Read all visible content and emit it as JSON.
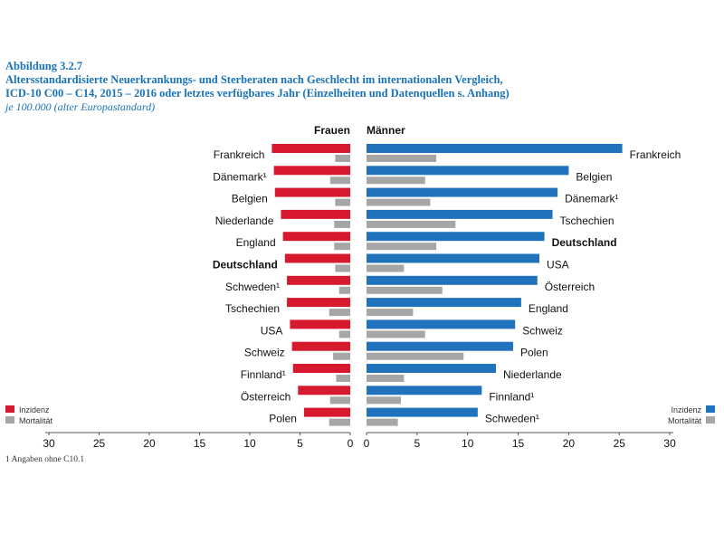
{
  "header": {
    "label": "Abbildung 3.2.7",
    "title_line1": "Altersstandardisierte Neuerkrankungs- und Sterberaten nach Geschlecht im internationalen Vergleich,",
    "title_line2": "ICD-10 C00 – C14, 2015 – 2016 oder letztes verfügbares Jahr (Einzelheiten und Datenquellen s. Anhang)",
    "unit": "je 100.000 (alter Europastandard)"
  },
  "footnote": "1  Angaben ohne C10.1",
  "colors": {
    "incidence_f": "#d7192e",
    "incidence_m": "#1f72bb",
    "mortality": "#a6a6a6"
  },
  "chart_data": [
    {
      "type": "bar",
      "orientation": "horizontal",
      "panel": "Frauen",
      "direction": "reversed",
      "xlim": [
        0,
        30
      ],
      "ticks": [
        30,
        25,
        20,
        15,
        10,
        5,
        0
      ],
      "legend": {
        "position": "bottom-left",
        "entries": [
          "Inzidenz",
          "Mortalität"
        ]
      },
      "categories": [
        "Frankreich",
        "Dänemark¹",
        "Belgien",
        "Niederlande",
        "England",
        "Deutschland",
        "Schweden¹",
        "Tschechien",
        "USA",
        "Schweiz",
        "Finnland¹",
        "Österreich",
        "Polen"
      ],
      "highlight": "Deutschland",
      "series": [
        {
          "name": "Inzidenz",
          "values": [
            7.8,
            7.6,
            7.5,
            6.9,
            6.7,
            6.5,
            6.3,
            6.3,
            6.0,
            5.8,
            5.7,
            5.2,
            4.6
          ]
        },
        {
          "name": "Mortalität",
          "values": [
            1.5,
            2.0,
            1.5,
            1.6,
            1.6,
            1.5,
            1.1,
            2.1,
            1.1,
            1.7,
            1.4,
            2.0,
            2.1
          ]
        }
      ]
    },
    {
      "type": "bar",
      "orientation": "horizontal",
      "panel": "Männer",
      "xlim": [
        0,
        30
      ],
      "ticks": [
        0,
        5,
        10,
        15,
        20,
        25,
        30
      ],
      "legend": {
        "position": "bottom-right",
        "entries": [
          "Inzidenz",
          "Mortalität"
        ]
      },
      "categories": [
        "Frankreich",
        "Belgien",
        "Dänemark¹",
        "Tschechien",
        "Deutschland",
        "USA",
        "Österreich",
        "England",
        "Schweiz",
        "Polen",
        "Niederlande",
        "Finnland¹",
        "Schweden¹"
      ],
      "highlight": "Deutschland",
      "series": [
        {
          "name": "Inzidenz",
          "values": [
            25.3,
            20.0,
            18.9,
            18.4,
            17.6,
            17.1,
            16.9,
            15.3,
            14.7,
            14.5,
            12.8,
            11.4,
            11.0
          ]
        },
        {
          "name": "Mortalität",
          "values": [
            6.9,
            5.8,
            6.3,
            8.8,
            6.9,
            3.7,
            7.5,
            4.6,
            5.8,
            9.6,
            3.7,
            3.4,
            3.1
          ]
        }
      ]
    }
  ]
}
